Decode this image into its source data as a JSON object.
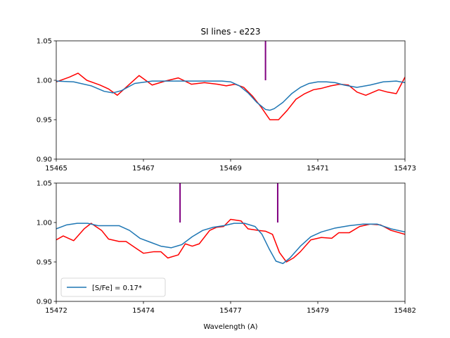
{
  "chart_data": [
    {
      "type": "line",
      "title": "SI lines - e223",
      "xlabel": "",
      "ylabel": "",
      "xlim": [
        15465,
        15473
      ],
      "ylim": [
        0.9,
        1.05
      ],
      "xticks": [
        "15465",
        "15467",
        "15469",
        "15471",
        "15473"
      ],
      "yticks": [
        "0.90",
        "0.95",
        "1.00",
        "1.05"
      ],
      "grid": false,
      "line_markers": [
        {
          "x": 15469.8,
          "y_from": 1.0,
          "y_to": 1.05,
          "color": "#800080"
        }
      ],
      "series": [
        {
          "color": "#ff0000",
          "x": [
            15465.0,
            15465.3,
            15465.5,
            15465.7,
            15466.0,
            15466.2,
            15466.4,
            15466.6,
            15466.9,
            15467.2,
            15467.5,
            15467.8,
            15468.1,
            15468.4,
            15468.7,
            15468.9,
            15469.1,
            15469.3,
            15469.5,
            15469.7,
            15469.9,
            15470.1,
            15470.3,
            15470.5,
            15470.7,
            15470.9,
            15471.1,
            15471.3,
            15471.5,
            15471.7,
            15471.9,
            15472.1,
            15472.4,
            15472.6,
            15472.8,
            15473.0
          ],
          "y": [
            0.998,
            1.004,
            1.009,
            1.0,
            0.994,
            0.989,
            0.981,
            0.991,
            1.006,
            0.994,
            0.999,
            1.003,
            0.995,
            0.997,
            0.995,
            0.993,
            0.995,
            0.991,
            0.98,
            0.966,
            0.95,
            0.95,
            0.962,
            0.976,
            0.983,
            0.988,
            0.99,
            0.993,
            0.995,
            0.994,
            0.985,
            0.981,
            0.988,
            0.985,
            0.983,
            1.004
          ]
        },
        {
          "color": "#1f77b4",
          "x": [
            15465.0,
            15465.4,
            15465.8,
            15466.1,
            15466.3,
            15466.5,
            15466.8,
            15467.2,
            15467.6,
            15468.0,
            15468.4,
            15468.8,
            15469.0,
            15469.2,
            15469.4,
            15469.6,
            15469.8,
            15469.9,
            15470.0,
            15470.2,
            15470.4,
            15470.6,
            15470.8,
            15471.0,
            15471.2,
            15471.4,
            15471.6,
            15471.9,
            15472.2,
            15472.5,
            15472.8,
            15473.0
          ],
          "y": [
            0.999,
            0.998,
            0.993,
            0.986,
            0.984,
            0.987,
            0.996,
            0.999,
            0.999,
            0.999,
            0.999,
            0.999,
            0.998,
            0.993,
            0.984,
            0.972,
            0.963,
            0.962,
            0.964,
            0.972,
            0.983,
            0.991,
            0.996,
            0.998,
            0.998,
            0.997,
            0.994,
            0.991,
            0.994,
            0.998,
            0.999,
            0.997
          ]
        }
      ]
    },
    {
      "type": "line",
      "title": "",
      "xlabel": "Wavelength (A)",
      "ylabel": "",
      "xlim": [
        15472,
        15482
      ],
      "ylim": [
        0.9,
        1.05
      ],
      "xticks": [
        "15472",
        "15474",
        "15477",
        "15479",
        "15482"
      ],
      "yticks": [
        "0.90",
        "0.95",
        "1.00",
        "1.05"
      ],
      "grid": false,
      "legend_position": "lower-left",
      "line_markers": [
        {
          "x": 15475.55,
          "y_from": 1.0,
          "y_to": 1.05,
          "color": "#800080"
        },
        {
          "x": 15478.35,
          "y_from": 1.0,
          "y_to": 1.05,
          "color": "#800080"
        }
      ],
      "series": [
        {
          "color": "#ff0000",
          "x": [
            15472.0,
            15472.2,
            15472.5,
            15472.8,
            15473.0,
            15473.3,
            15473.5,
            15473.8,
            15474.0,
            15474.3,
            15474.5,
            15474.8,
            15475.0,
            15475.2,
            15475.5,
            15475.7,
            15475.9,
            15476.1,
            15476.4,
            15476.6,
            15476.8,
            15477.0,
            15477.3,
            15477.5,
            15477.8,
            15478.0,
            15478.2,
            15478.4,
            15478.6,
            15478.8,
            15479.0,
            15479.3,
            15479.6,
            15479.9,
            15480.1,
            15480.4,
            15480.7,
            15481.0,
            15481.3,
            15481.6,
            15482.0
          ],
          "y": [
            0.978,
            0.983,
            0.977,
            0.992,
            0.999,
            0.99,
            0.979,
            0.976,
            0.976,
            0.967,
            0.961,
            0.963,
            0.963,
            0.955,
            0.959,
            0.973,
            0.97,
            0.973,
            0.99,
            0.994,
            0.995,
            1.004,
            1.002,
            0.992,
            0.99,
            0.989,
            0.985,
            0.962,
            0.95,
            0.955,
            0.963,
            0.978,
            0.981,
            0.98,
            0.987,
            0.987,
            0.995,
            0.998,
            0.997,
            0.99,
            0.985
          ]
        },
        {
          "name": "[S/Fe] = 0.17*",
          "color": "#1f77b4",
          "x": [
            15472.0,
            15472.3,
            15472.6,
            15472.9,
            15473.2,
            15473.5,
            15473.8,
            15474.1,
            15474.4,
            15474.7,
            15475.0,
            15475.3,
            15475.6,
            15475.9,
            15476.2,
            15476.5,
            15476.8,
            15477.1,
            15477.4,
            15477.7,
            15477.9,
            15478.1,
            15478.3,
            15478.5,
            15478.7,
            15479.0,
            15479.3,
            15479.6,
            15480.0,
            15480.4,
            15480.8,
            15481.2,
            15481.6,
            15482.0
          ],
          "y": [
            0.992,
            0.997,
            0.999,
            0.999,
            0.996,
            0.996,
            0.996,
            0.99,
            0.98,
            0.975,
            0.97,
            0.968,
            0.972,
            0.982,
            0.99,
            0.994,
            0.996,
            0.999,
            0.999,
            0.995,
            0.985,
            0.967,
            0.951,
            0.948,
            0.955,
            0.97,
            0.982,
            0.988,
            0.993,
            0.996,
            0.998,
            0.998,
            0.992,
            0.988
          ]
        }
      ]
    }
  ]
}
